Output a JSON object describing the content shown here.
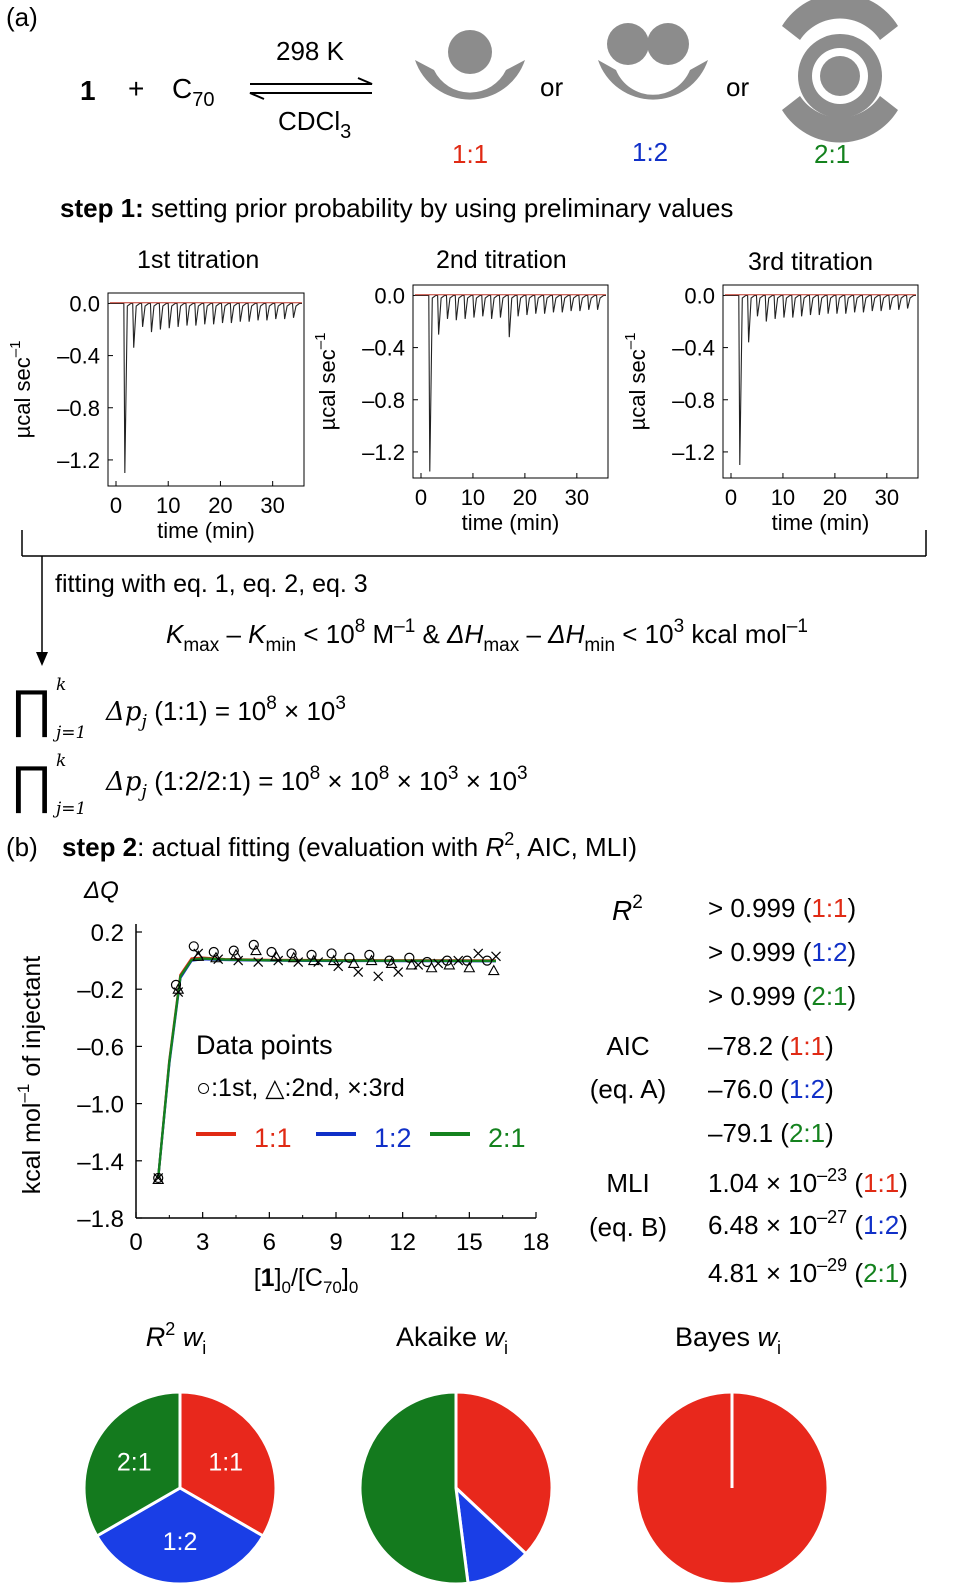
{
  "panel_a": {
    "label": "(a)",
    "reaction": {
      "reactant1": "1",
      "plus": "+",
      "reactant2": "C",
      "reactant2_sub": "70",
      "above_arrow": "298 K",
      "below_arrow": "CDCl",
      "below_arrow_sub": "3",
      "or1": "or",
      "or2": "or"
    },
    "complexes": [
      {
        "label": "1:1",
        "color": "#e02a14"
      },
      {
        "label": "1:2",
        "color": "#1030c8"
      },
      {
        "label": "2:1",
        "color": "#14821e"
      }
    ],
    "step1": {
      "bold": "step 1:",
      "text": " setting prior probability by using preliminary values"
    },
    "fitting_note": "fitting with eq. 1, eq. 2, eq. 3",
    "constraint": {
      "K": "K",
      "max": "max",
      "minus1": " – ",
      "min": "min",
      "lt1": " < 10",
      "exp8": "8",
      "unit1": " M",
      "neg1": "–1",
      "amp": " & ",
      "dH": "ΔH",
      "lt2": " < 10",
      "exp3": "3",
      "unit2": " kcal mol",
      "neg2": "–1"
    },
    "products": [
      {
        "prod": "∏",
        "sup": "k",
        "sub": "j=1",
        "dp": "Δp",
        "dpsub": "j",
        "case": " (1:1) = 10",
        "e1": "8",
        "times1": " × 10",
        "e2": "3"
      },
      {
        "prod": "∏",
        "sup": "k",
        "sub": "j=1",
        "dp": "Δp",
        "dpsub": "j",
        "case": " (1:2/2:1) = 10",
        "e1": "8",
        "times1": " × 10",
        "e2": "8",
        "times2": " × 10",
        "e3": "3",
        "times3": " × 10",
        "e4": "3"
      }
    ]
  },
  "titrations": [
    {
      "title": "1st titration",
      "xlabel": "time (min)",
      "ylabel": "µcal sec",
      "ylabel_sup": "–1",
      "yticks": [
        "0.0",
        "–0.4",
        "–0.8",
        "–1.2"
      ],
      "xticks": [
        "0",
        "10",
        "20",
        "30"
      ]
    },
    {
      "title": "2nd titration",
      "xlabel": "time (min)",
      "ylabel": "µcal sec",
      "ylabel_sup": "–1",
      "yticks": [
        "0.0",
        "–0.4",
        "–0.8",
        "–1.2"
      ],
      "xticks": [
        "0",
        "10",
        "20",
        "30"
      ]
    },
    {
      "title": "3rd titration",
      "xlabel": "time (min)",
      "ylabel": "µcal sec",
      "ylabel_sup": "–1",
      "yticks": [
        "0.0",
        "–0.4",
        "–0.8",
        "–1.2"
      ],
      "xticks": [
        "0",
        "10",
        "20",
        "30"
      ]
    }
  ],
  "panel_b": {
    "label": "(b)",
    "step2": {
      "bold": "step 2",
      "text": ": actual fitting (evaluation with ",
      "R": "R",
      "R_sup": "2",
      "rest": ", AIC, MLI)"
    }
  },
  "chart_data": [
    {
      "type": "scatter",
      "title": "",
      "y_top_label": "ΔQ",
      "xlabel": "[1]0/[C70]0",
      "ylabel": "kcal mol–1 of injectant",
      "xlim": [
        0,
        18
      ],
      "ylim": [
        -1.8,
        0.3
      ],
      "xticks": [
        0,
        3,
        6,
        9,
        12,
        15,
        18
      ],
      "yticks": [
        0.2,
        -0.2,
        -0.6,
        -1.0,
        -1.4,
        -1.8
      ],
      "xtick_labels": [
        "0",
        "3",
        "6",
        "9",
        "12",
        "15",
        "18"
      ],
      "ytick_labels": [
        "0.2",
        "–0.2",
        "–0.6",
        "–1.0",
        "–1.4",
        "–1.8"
      ],
      "legend": {
        "title": "Data points",
        "markers_text": [
          "○:1st, ",
          "△:2nd, ",
          "×:3rd"
        ],
        "lines": [
          "1:1",
          "1:2",
          "2:1"
        ]
      },
      "series": [
        {
          "name": "1st",
          "marker": "circle",
          "x": [
            1.0,
            1.8,
            2.6,
            3.5,
            4.4,
            5.3,
            6.1,
            7.0,
            7.9,
            8.8,
            9.6,
            10.5,
            11.4,
            12.3,
            13.1,
            14.0,
            14.9,
            15.8
          ],
          "y": [
            -1.52,
            -0.17,
            0.1,
            0.06,
            0.07,
            0.11,
            0.06,
            0.05,
            0.04,
            0.05,
            0.02,
            0.04,
            0.0,
            0.02,
            -0.01,
            0.0,
            0.0,
            0.0
          ]
        },
        {
          "name": "2nd",
          "marker": "triangle",
          "x": [
            1.0,
            1.9,
            2.8,
            3.6,
            4.5,
            5.4,
            6.3,
            7.1,
            8.0,
            8.9,
            9.8,
            10.6,
            11.5,
            12.4,
            13.3,
            14.1,
            15.0,
            16.1
          ],
          "y": [
            -1.53,
            -0.2,
            0.03,
            0.02,
            0.04,
            0.07,
            0.03,
            0.02,
            0.0,
            0.0,
            -0.02,
            0.0,
            -0.02,
            -0.03,
            -0.05,
            -0.03,
            -0.05,
            -0.07
          ]
        },
        {
          "name": "3rd",
          "marker": "x",
          "x": [
            1.0,
            1.9,
            2.8,
            3.7,
            4.6,
            5.5,
            6.4,
            7.3,
            8.2,
            9.1,
            10.0,
            10.9,
            11.8,
            12.7,
            13.6,
            14.5,
            15.4,
            16.2
          ],
          "y": [
            -1.52,
            -0.22,
            0.05,
            0.01,
            0.0,
            -0.01,
            0.0,
            -0.01,
            -0.01,
            -0.04,
            -0.08,
            -0.11,
            -0.08,
            -0.03,
            -0.02,
            0.0,
            0.05,
            0.03
          ]
        }
      ],
      "fit_lines": [
        {
          "name": "1:1",
          "color": "#e02a14",
          "x": [
            1.0,
            1.5,
            2.0,
            2.5,
            3.0,
            4.0,
            6.0,
            9.0,
            12.0,
            16.2
          ],
          "y": [
            -1.52,
            -0.7,
            -0.1,
            0.015,
            0.02,
            0.01,
            0.005,
            0.003,
            0.002,
            0.001
          ]
        },
        {
          "name": "1:2",
          "color": "#1030c8",
          "x": [
            1.0,
            1.5,
            2.0,
            2.5,
            3.0,
            4.0,
            6.0,
            9.0,
            12.0,
            16.2
          ],
          "y": [
            -1.52,
            -0.72,
            -0.12,
            0.0,
            0.01,
            0.005,
            0.0,
            -0.002,
            -0.003,
            -0.004
          ]
        },
        {
          "name": "2:1",
          "color": "#14821e",
          "x": [
            1.0,
            1.5,
            2.0,
            2.5,
            3.0,
            4.0,
            6.0,
            9.0,
            12.0,
            16.2
          ],
          "y": [
            -1.52,
            -0.71,
            -0.11,
            0.005,
            0.015,
            0.008,
            0.002,
            0.0,
            -0.001,
            -0.002
          ]
        }
      ]
    },
    {
      "type": "pie",
      "title": "R2 wi",
      "labels": [
        "1:1",
        "1:2",
        "2:1"
      ],
      "values": [
        33.3,
        33.3,
        33.3
      ],
      "colors": [
        "#e8281c",
        "#1a3ee6",
        "#147a1e"
      ],
      "show_labels": true
    },
    {
      "type": "pie",
      "title": "Akaike wi",
      "labels": [
        "1:1",
        "1:2",
        "2:1"
      ],
      "values": [
        37,
        11,
        52
      ],
      "colors": [
        "#e8281c",
        "#1a3ee6",
        "#147a1e"
      ],
      "show_labels": false
    },
    {
      "type": "pie",
      "title": "Bayes wi",
      "labels": [
        "1:1",
        "1:2",
        "2:1"
      ],
      "values": [
        100,
        0,
        0
      ],
      "colors": [
        "#e8281c",
        "#1a3ee6",
        "#147a1e"
      ],
      "show_labels": false
    }
  ],
  "stats": {
    "R2": {
      "label": "R",
      "sup": "2",
      "rows": [
        {
          "prefix": "> 0.999 (",
          "model": "1:1",
          "suffix": ")",
          "color": "red"
        },
        {
          "prefix": "> 0.999 (",
          "model": "1:2",
          "suffix": ")",
          "color": "blue"
        },
        {
          "prefix": "> 0.999 (",
          "model": "2:1",
          "suffix": ")",
          "color": "green"
        }
      ]
    },
    "AIC": {
      "label": "AIC",
      "sublabel": "(eq. A)",
      "rows": [
        {
          "prefix": "–78.2 (",
          "model": "1:1",
          "suffix": ")",
          "color": "red"
        },
        {
          "prefix": "–76.0 (",
          "model": "1:2",
          "suffix": ")",
          "color": "blue"
        },
        {
          "prefix": "–79.1 (",
          "model": "2:1",
          "suffix": ")",
          "color": "green"
        }
      ]
    },
    "MLI": {
      "label": "MLI",
      "sublabel": "(eq. B)",
      "rows": [
        {
          "prefix": "1.04 × 10",
          "sup": "–23",
          "mid": " (",
          "model": "1:1",
          "suffix": ")",
          "color": "red"
        },
        {
          "prefix": "6.48 × 10",
          "sup": "–27",
          "mid": " (",
          "model": "1:2",
          "suffix": ")",
          "color": "blue"
        },
        {
          "prefix": "4.81 × 10",
          "sup": "–29",
          "mid": " (",
          "model": "2:1",
          "suffix": ")",
          "color": "green"
        }
      ]
    }
  },
  "pie_titles": [
    {
      "main": "R",
      "sup": "2",
      "w": " w",
      "sub": "i"
    },
    {
      "main": "Akaike ",
      "w": "w",
      "sub": "i"
    },
    {
      "main": "Bayes ",
      "w": "w",
      "sub": "i"
    }
  ]
}
